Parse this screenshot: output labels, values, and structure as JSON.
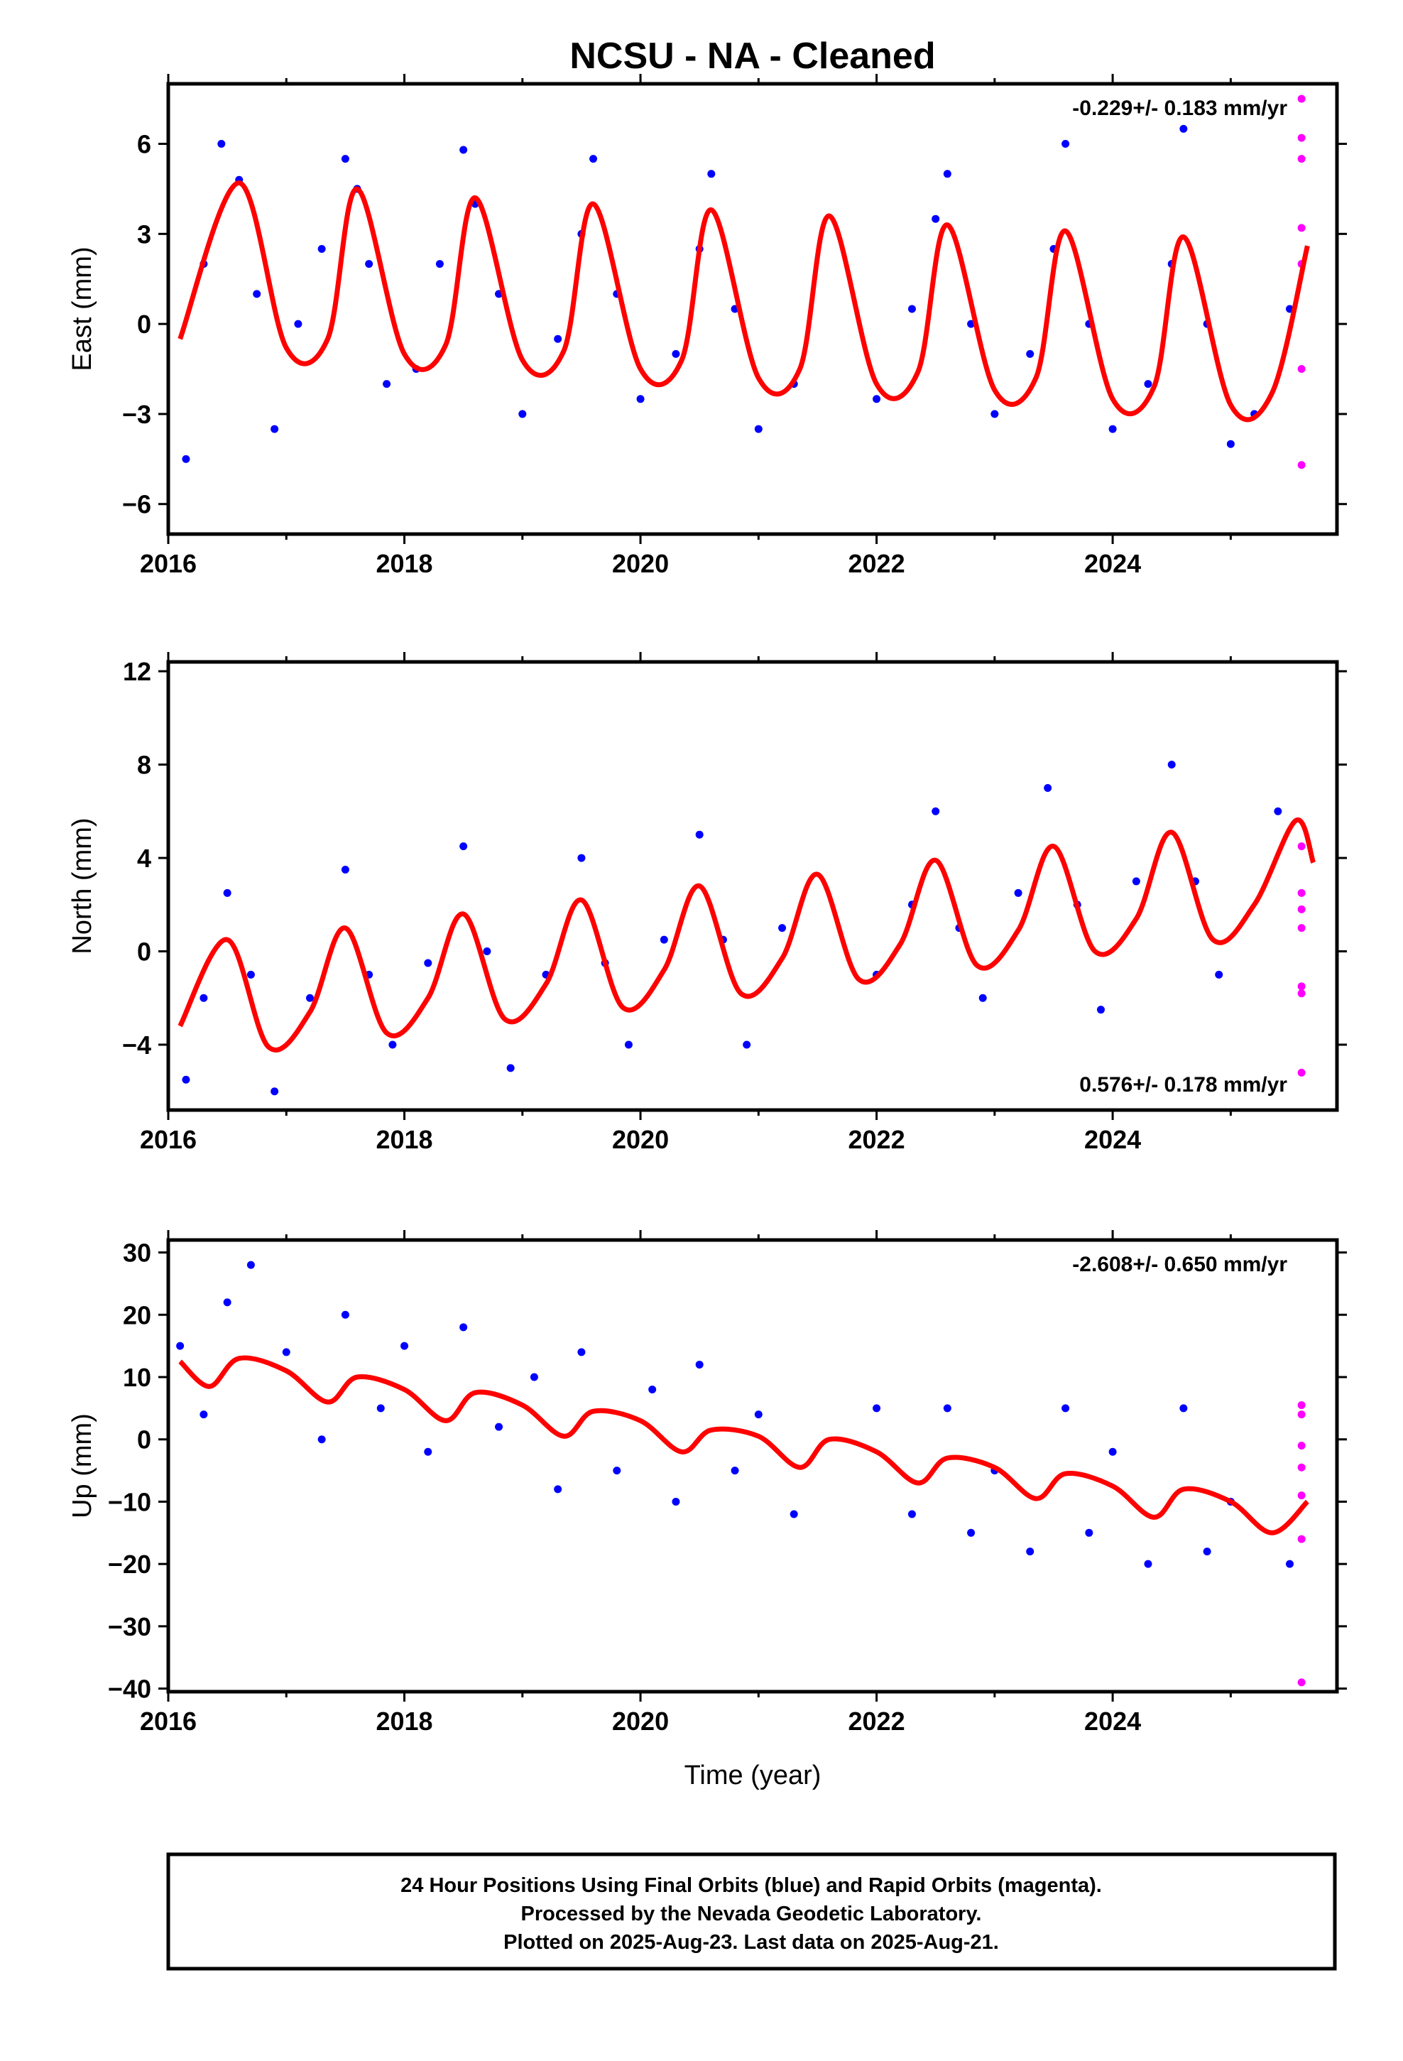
{
  "title": "NCSU  - NA - Cleaned",
  "footer": {
    "line1": "24 Hour Positions Using Final Orbits (blue) and Rapid Orbits (magenta).",
    "line2": "Processed by the Nevada Geodetic Laboratory.",
    "line3": "Plotted on 2025-Aug-23. Last data on 2025-Aug-21."
  },
  "colors": {
    "final": "#0000ff",
    "rapid": "#ff00ff",
    "model": "#ff0000"
  },
  "chart_data": [
    {
      "type": "scatter",
      "component": "East",
      "ylabel": "East (mm)",
      "xlabel": "",
      "xlim": [
        2016.0,
        2025.9
      ],
      "ylim": [
        -7,
        8
      ],
      "x_ticks": [
        2016,
        2018,
        2020,
        2022,
        2024
      ],
      "y_ticks": [
        -6,
        -3,
        0,
        3,
        6
      ],
      "rate_label": "-0.229+/- 0.183 mm/yr",
      "rate_position": "top-right",
      "model": {
        "x": [
          2016.1,
          2016.6,
          2017.0,
          2017.35,
          2017.6,
          2018.0,
          2018.35,
          2018.6,
          2019.0,
          2019.35,
          2019.6,
          2020.0,
          2020.35,
          2020.6,
          2021.0,
          2021.35,
          2021.6,
          2022.0,
          2022.35,
          2022.6,
          2023.0,
          2023.35,
          2023.6,
          2024.0,
          2024.35,
          2024.6,
          2025.0,
          2025.35,
          2025.65
        ],
        "y": [
          -0.5,
          4.7,
          -0.8,
          -0.5,
          4.5,
          -1.0,
          -0.7,
          4.2,
          -1.2,
          -0.9,
          4.0,
          -1.5,
          -1.2,
          3.8,
          -1.8,
          -1.5,
          3.6,
          -2.0,
          -1.6,
          3.3,
          -2.2,
          -1.8,
          3.1,
          -2.5,
          -2.1,
          2.9,
          -2.7,
          -2.3,
          2.6
        ]
      },
      "final_points": {
        "x": [
          2016.15,
          2016.3,
          2016.45,
          2016.6,
          2016.75,
          2016.9,
          2017.1,
          2017.3,
          2017.5,
          2017.6,
          2017.7,
          2017.85,
          2018.1,
          2018.3,
          2018.5,
          2018.6,
          2018.8,
          2019.0,
          2019.3,
          2019.5,
          2019.6,
          2019.8,
          2020.0,
          2020.3,
          2020.5,
          2020.6,
          2020.8,
          2021.0,
          2021.3,
          2022.0,
          2022.3,
          2022.5,
          2022.6,
          2022.8,
          2023.0,
          2023.3,
          2023.5,
          2023.6,
          2023.8,
          2024.0,
          2024.3,
          2024.5,
          2024.6,
          2024.8,
          2025.0,
          2025.2,
          2025.5
        ],
        "y": [
          -4.5,
          2.0,
          6.0,
          4.8,
          1.0,
          -3.5,
          0.0,
          2.5,
          5.5,
          4.5,
          2.0,
          -2.0,
          -1.5,
          2.0,
          5.8,
          4.0,
          1.0,
          -3.0,
          -0.5,
          3.0,
          5.5,
          1.0,
          -2.5,
          -1.0,
          2.5,
          5.0,
          0.5,
          -3.5,
          -2.0,
          -2.5,
          0.5,
          3.5,
          5.0,
          0.0,
          -3.0,
          -1.0,
          2.5,
          6.0,
          0.0,
          -3.5,
          -2.0,
          2.0,
          6.5,
          0.0,
          -4.0,
          -3.0,
          0.5
        ]
      },
      "rapid_points": {
        "x": [
          2025.6,
          2025.6,
          2025.6,
          2025.6,
          2025.6,
          2025.6,
          2025.6
        ],
        "y": [
          7.5,
          6.2,
          5.5,
          3.2,
          2.0,
          -1.5,
          -4.7
        ]
      }
    },
    {
      "type": "scatter",
      "component": "North",
      "ylabel": "North (mm)",
      "xlabel": "",
      "xlim": [
        2016.0,
        2025.9
      ],
      "ylim": [
        -6.8,
        12.4
      ],
      "x_ticks": [
        2016,
        2018,
        2020,
        2022,
        2024
      ],
      "y_ticks": [
        -4,
        0,
        4,
        8,
        12
      ],
      "rate_label": "0.576+/- 0.178 mm/yr",
      "rate_position": "bottom-right",
      "model": {
        "x": [
          2016.1,
          2016.5,
          2016.85,
          2017.2,
          2017.5,
          2017.85,
          2018.2,
          2018.5,
          2018.85,
          2019.2,
          2019.5,
          2019.85,
          2020.2,
          2020.5,
          2020.85,
          2021.2,
          2021.5,
          2021.85,
          2022.2,
          2022.5,
          2022.85,
          2023.2,
          2023.5,
          2023.85,
          2024.2,
          2024.5,
          2024.85,
          2025.2,
          2025.55,
          2025.7
        ],
        "y": [
          -3.2,
          0.5,
          -4.1,
          -2.6,
          1.0,
          -3.5,
          -2.0,
          1.6,
          -2.9,
          -1.4,
          2.2,
          -2.4,
          -0.8,
          2.8,
          -1.8,
          -0.3,
          3.3,
          -1.2,
          0.3,
          3.9,
          -0.6,
          0.9,
          4.5,
          0.0,
          1.4,
          5.1,
          0.5,
          2.0,
          5.6,
          3.8
        ]
      },
      "final_points": {
        "x": [
          2016.15,
          2016.3,
          2016.5,
          2016.7,
          2016.9,
          2017.2,
          2017.5,
          2017.7,
          2017.9,
          2018.2,
          2018.5,
          2018.7,
          2018.9,
          2019.2,
          2019.5,
          2019.7,
          2019.9,
          2020.2,
          2020.5,
          2020.7,
          2020.9,
          2021.2,
          2022.0,
          2022.3,
          2022.5,
          2022.7,
          2022.9,
          2023.2,
          2023.45,
          2023.7,
          2023.9,
          2024.2,
          2024.5,
          2024.7,
          2024.9,
          2025.4
        ],
        "y": [
          -5.5,
          -2.0,
          2.5,
          -1.0,
          -6.0,
          -2.0,
          3.5,
          -1.0,
          -4.0,
          -0.5,
          4.5,
          0.0,
          -5.0,
          -1.0,
          4.0,
          -0.5,
          -4.0,
          0.5,
          5.0,
          0.5,
          -4.0,
          1.0,
          -1.0,
          2.0,
          6.0,
          1.0,
          -2.0,
          2.5,
          7.0,
          2.0,
          -2.5,
          3.0,
          8.0,
          3.0,
          -1.0,
          6.0
        ]
      },
      "rapid_points": {
        "x": [
          2025.6,
          2025.6,
          2025.6,
          2025.6,
          2025.6,
          2025.6,
          2025.6
        ],
        "y": [
          4.5,
          2.5,
          1.8,
          1.0,
          -1.5,
          -1.8,
          -5.2
        ]
      }
    },
    {
      "type": "scatter",
      "component": "Up",
      "ylabel": "Up (mm)",
      "xlabel": "Time (year)",
      "xlim": [
        2016.0,
        2025.9
      ],
      "ylim": [
        -40.5,
        32
      ],
      "x_ticks": [
        2016,
        2018,
        2020,
        2022,
        2024
      ],
      "y_ticks": [
        -40,
        -30,
        -20,
        -10,
        0,
        10,
        20,
        30
      ],
      "rate_label": "-2.608+/- 0.650 mm/yr",
      "rate_position": "top-right",
      "model": {
        "x": [
          2016.1,
          2016.35,
          2016.6,
          2017.0,
          2017.35,
          2017.6,
          2018.0,
          2018.35,
          2018.6,
          2019.0,
          2019.35,
          2019.6,
          2020.0,
          2020.35,
          2020.6,
          2021.0,
          2021.35,
          2021.6,
          2022.0,
          2022.35,
          2022.6,
          2023.0,
          2023.35,
          2023.6,
          2024.0,
          2024.35,
          2024.6,
          2025.0,
          2025.35,
          2025.65
        ],
        "y": [
          12.5,
          8.5,
          13.0,
          11.0,
          6.0,
          10.0,
          8.0,
          3.0,
          7.5,
          5.5,
          0.5,
          4.5,
          3.0,
          -2.0,
          1.5,
          0.5,
          -4.5,
          0.0,
          -2.0,
          -7.0,
          -3.0,
          -4.5,
          -9.5,
          -5.5,
          -7.5,
          -12.5,
          -8.0,
          -10.0,
          -15.0,
          -10.0
        ]
      },
      "final_points": {
        "x": [
          2016.1,
          2016.3,
          2016.5,
          2016.7,
          2017.0,
          2017.3,
          2017.5,
          2017.8,
          2018.0,
          2018.2,
          2018.5,
          2018.8,
          2019.1,
          2019.3,
          2019.5,
          2019.8,
          2020.1,
          2020.3,
          2020.5,
          2020.8,
          2021.0,
          2021.3,
          2022.0,
          2022.3,
          2022.6,
          2022.8,
          2023.0,
          2023.3,
          2023.6,
          2023.8,
          2024.0,
          2024.3,
          2024.6,
          2024.8,
          2025.0,
          2025.5
        ],
        "y": [
          15.0,
          4.0,
          22.0,
          28.0,
          14.0,
          0.0,
          20.0,
          5.0,
          15.0,
          -2.0,
          18.0,
          2.0,
          10.0,
          -8.0,
          14.0,
          -5.0,
          8.0,
          -10.0,
          12.0,
          -5.0,
          4.0,
          -12.0,
          5.0,
          -12.0,
          5.0,
          -15.0,
          -5.0,
          -18.0,
          5.0,
          -15.0,
          -2.0,
          -20.0,
          5.0,
          -18.0,
          -10.0,
          -20.0
        ]
      },
      "rapid_points": {
        "x": [
          2025.6,
          2025.6,
          2025.6,
          2025.6,
          2025.6,
          2025.6,
          2025.6
        ],
        "y": [
          5.5,
          4.0,
          -1.0,
          -4.5,
          -9.0,
          -16.0,
          -39.0
        ]
      }
    }
  ]
}
